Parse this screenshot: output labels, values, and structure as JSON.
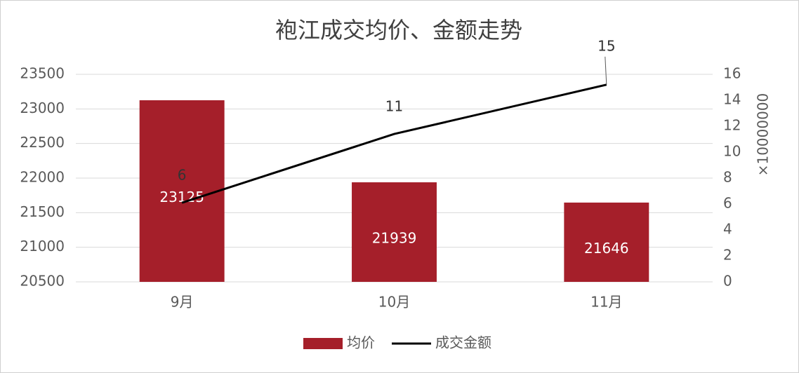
{
  "chart_data": {
    "type": "bar",
    "title": "袍江成交均价、金额走势",
    "categories": [
      "9月",
      "10月",
      "11月"
    ],
    "series": [
      {
        "name": "均价",
        "type": "bar",
        "color": "#a51f2a",
        "values": [
          23125,
          21939,
          21646
        ]
      },
      {
        "name": "成交金额",
        "type": "line",
        "axis": "y2",
        "color": "#000000",
        "values": [
          6.1,
          11.4,
          15.2
        ],
        "value_labels": [
          "6",
          "11",
          "15"
        ]
      }
    ],
    "ylim": [
      20500,
      23500
    ],
    "yticks": [
      20500,
      21000,
      21500,
      22000,
      22500,
      23000,
      23500
    ],
    "y2lim": [
      0,
      16
    ],
    "y2ticks": [
      0,
      2,
      4,
      6,
      8,
      10,
      12,
      14,
      16
    ],
    "y2label": "×10000000",
    "grid": true,
    "legend": "bottom"
  }
}
